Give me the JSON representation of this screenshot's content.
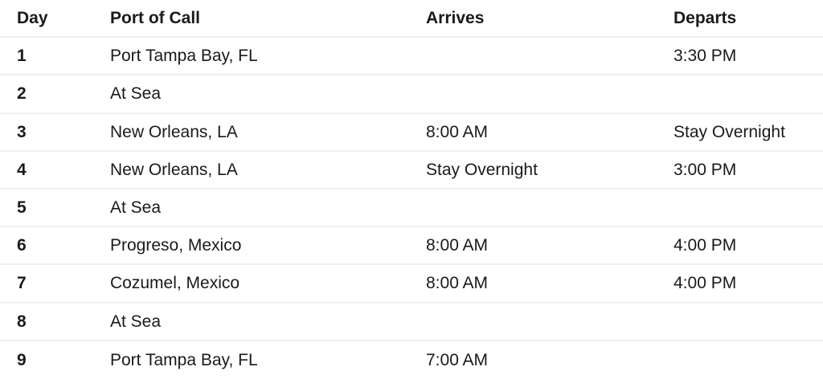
{
  "table": {
    "columns": {
      "day": "Day",
      "port": "Port of Call",
      "arrives": "Arrives",
      "departs": "Departs"
    },
    "rows": [
      {
        "day": "1",
        "port": "Port Tampa Bay, FL",
        "arrives": "",
        "departs": "3:30 PM"
      },
      {
        "day": "2",
        "port": "At Sea",
        "arrives": "",
        "departs": ""
      },
      {
        "day": "3",
        "port": "New Orleans, LA",
        "arrives": "8:00 AM",
        "departs": "Stay Overnight"
      },
      {
        "day": "4",
        "port": "New Orleans, LA",
        "arrives": "Stay Overnight",
        "departs": "3:00 PM"
      },
      {
        "day": "5",
        "port": "At Sea",
        "arrives": "",
        "departs": ""
      },
      {
        "day": "6",
        "port": "Progreso, Mexico",
        "arrives": "8:00 AM",
        "departs": "4:00 PM"
      },
      {
        "day": "7",
        "port": "Cozumel, Mexico",
        "arrives": "8:00 AM",
        "departs": "4:00 PM"
      },
      {
        "day": "8",
        "port": "At Sea",
        "arrives": "",
        "departs": ""
      },
      {
        "day": "9",
        "port": "Port Tampa Bay, FL",
        "arrives": "7:00 AM",
        "departs": ""
      }
    ]
  },
  "colors": {
    "text": "#1a1a1a",
    "divider": "#f0f0f0",
    "background": "#ffffff"
  }
}
